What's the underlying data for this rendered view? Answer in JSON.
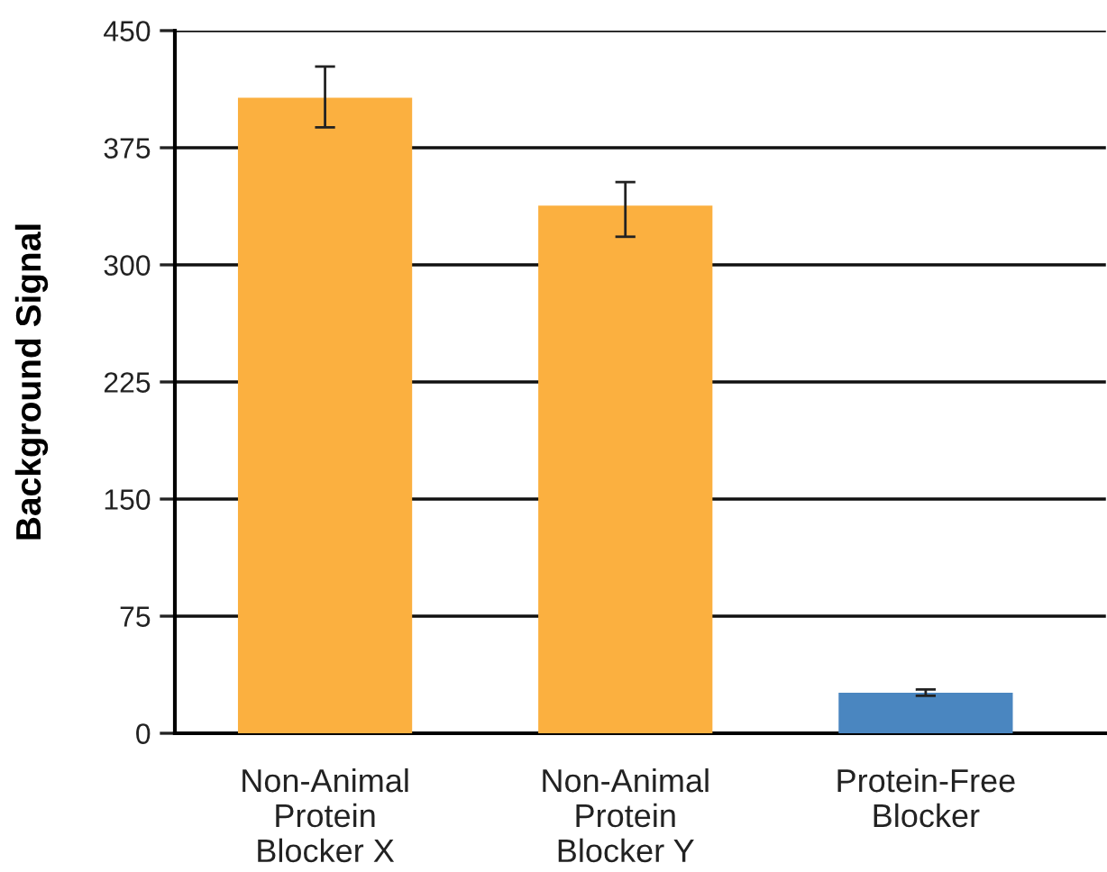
{
  "chart_data": {
    "type": "bar",
    "ylabel": "Background Signal",
    "categories": [
      "Non-Animal\nProtein\nBlocker X",
      "Non-Animal\nProtein\nBlocker Y",
      "Protein-Free\nBlocker"
    ],
    "values": [
      407,
      338,
      26
    ],
    "colors": [
      "#fbb040",
      "#fbb040",
      "#4a86c0"
    ],
    "errors": [
      [
        388,
        427
      ],
      [
        318,
        353
      ],
      [
        24,
        28
      ]
    ],
    "ylim": [
      0,
      450
    ],
    "yticks": [
      0,
      75,
      150,
      225,
      300,
      375,
      450
    ],
    "grid": "y"
  }
}
